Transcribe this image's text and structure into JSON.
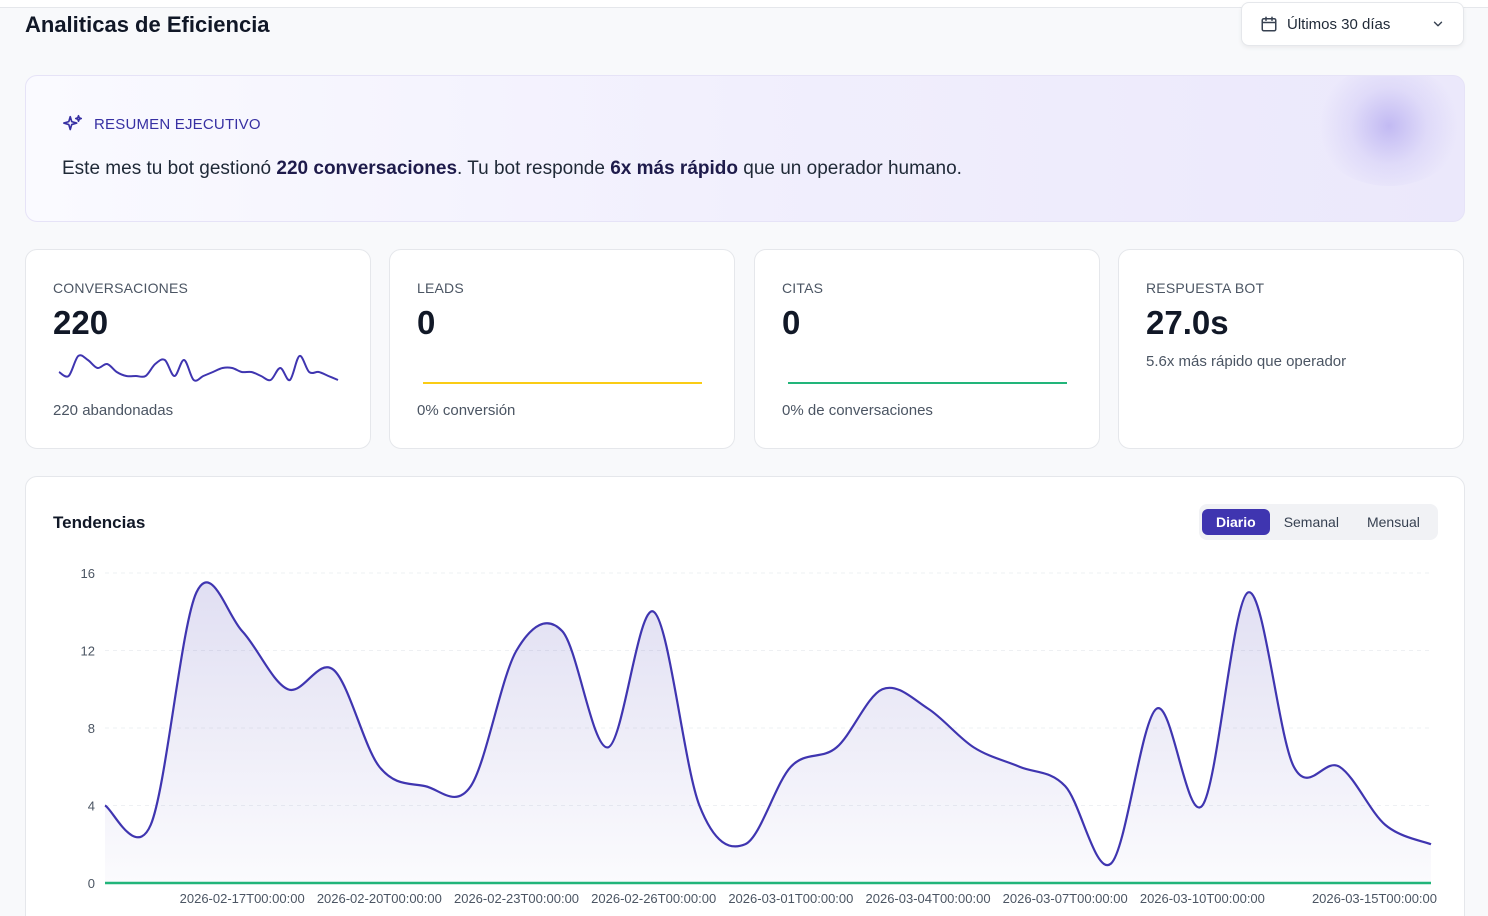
{
  "header": {
    "title": "Analiticas de Eficiencia",
    "date_range": "Últimos 30 días"
  },
  "summary": {
    "kicker": "RESUMEN EJECUTIVO",
    "text_1": "Este mes tu bot gestionó ",
    "bold_1": "220 conversaciones",
    "text_2": ". Tu bot responde ",
    "bold_2": "6x más rápido",
    "text_3": " que un operador humano."
  },
  "stats": [
    {
      "label": "CONVERSACIONES",
      "value": "220",
      "sub": "220 abandonadas",
      "spark_color": "#3f35b0"
    },
    {
      "label": "LEADS",
      "value": "0",
      "sub": "0% conversión",
      "spark_color": "#facc15"
    },
    {
      "label": "CITAS",
      "value": "0",
      "sub": "0% de conversaciones",
      "spark_color": "#22b57a"
    },
    {
      "label": "RESPUESTA BOT",
      "value": "27.0s",
      "sub": "5.6x más rápido que operador"
    }
  ],
  "trend": {
    "title": "Tendencias",
    "tabs": [
      "Diario",
      "Semanal",
      "Mensual"
    ],
    "active_tab": "Diario"
  },
  "colors": {
    "accent": "#3f35b0",
    "leads": "#facc15",
    "citas": "#22b57a"
  },
  "chart_data": {
    "type": "area",
    "x": [
      "2026-02-14T00:00:00",
      "2026-02-15T00:00:00",
      "2026-02-16T00:00:00",
      "2026-02-17T00:00:00",
      "2026-02-18T00:00:00",
      "2026-02-19T00:00:00",
      "2026-02-20T00:00:00",
      "2026-02-21T00:00:00",
      "2026-02-22T00:00:00",
      "2026-02-23T00:00:00",
      "2026-02-24T00:00:00",
      "2026-02-25T00:00:00",
      "2026-02-26T00:00:00",
      "2026-02-27T00:00:00",
      "2026-02-28T00:00:00",
      "2026-03-01T00:00:00",
      "2026-03-02T00:00:00",
      "2026-03-03T00:00:00",
      "2026-03-04T00:00:00",
      "2026-03-05T00:00:00",
      "2026-03-06T00:00:00",
      "2026-03-07T00:00:00",
      "2026-03-08T00:00:00",
      "2026-03-09T00:00:00",
      "2026-03-10T00:00:00",
      "2026-03-11T00:00:00",
      "2026-03-12T00:00:00",
      "2026-03-13T00:00:00",
      "2026-03-14T00:00:00",
      "2026-03-15T00:00:00"
    ],
    "x_tick_labels": [
      "2026-02-17T00:00:00",
      "2026-02-20T00:00:00",
      "2026-02-23T00:00:00",
      "2026-02-26T00:00:00",
      "2026-03-01T00:00:00",
      "2026-03-04T00:00:00",
      "2026-03-07T00:00:00",
      "2026-03-10T00:00:00",
      "2026-03-15T00:00:00"
    ],
    "series": [
      {
        "values": [
          4,
          3,
          15,
          13,
          10,
          11,
          6,
          5,
          5,
          12,
          13,
          7,
          14,
          4,
          2,
          6,
          7,
          10,
          9,
          7,
          6,
          5,
          1,
          9,
          4,
          15,
          6,
          6,
          3,
          2
        ],
        "color": "#3f35b0"
      },
      {
        "values": [
          0,
          0,
          0,
          0,
          0,
          0,
          0,
          0,
          0,
          0,
          0,
          0,
          0,
          0,
          0,
          0,
          0,
          0,
          0,
          0,
          0,
          0,
          0,
          0,
          0,
          0,
          0,
          0,
          0,
          0
        ],
        "color": "#22b57a"
      }
    ],
    "yticks": [
      0,
      4,
      8,
      12,
      16
    ],
    "ylim": [
      0,
      16
    ],
    "grid": true,
    "sparkline_conversaciones": [
      5,
      4,
      9,
      8,
      6,
      7,
      5,
      4,
      4,
      4,
      7,
      8,
      4,
      8,
      3,
      4,
      5,
      6,
      6,
      5,
      5,
      4,
      3,
      6,
      3,
      9,
      5,
      5,
      4,
      3
    ]
  }
}
